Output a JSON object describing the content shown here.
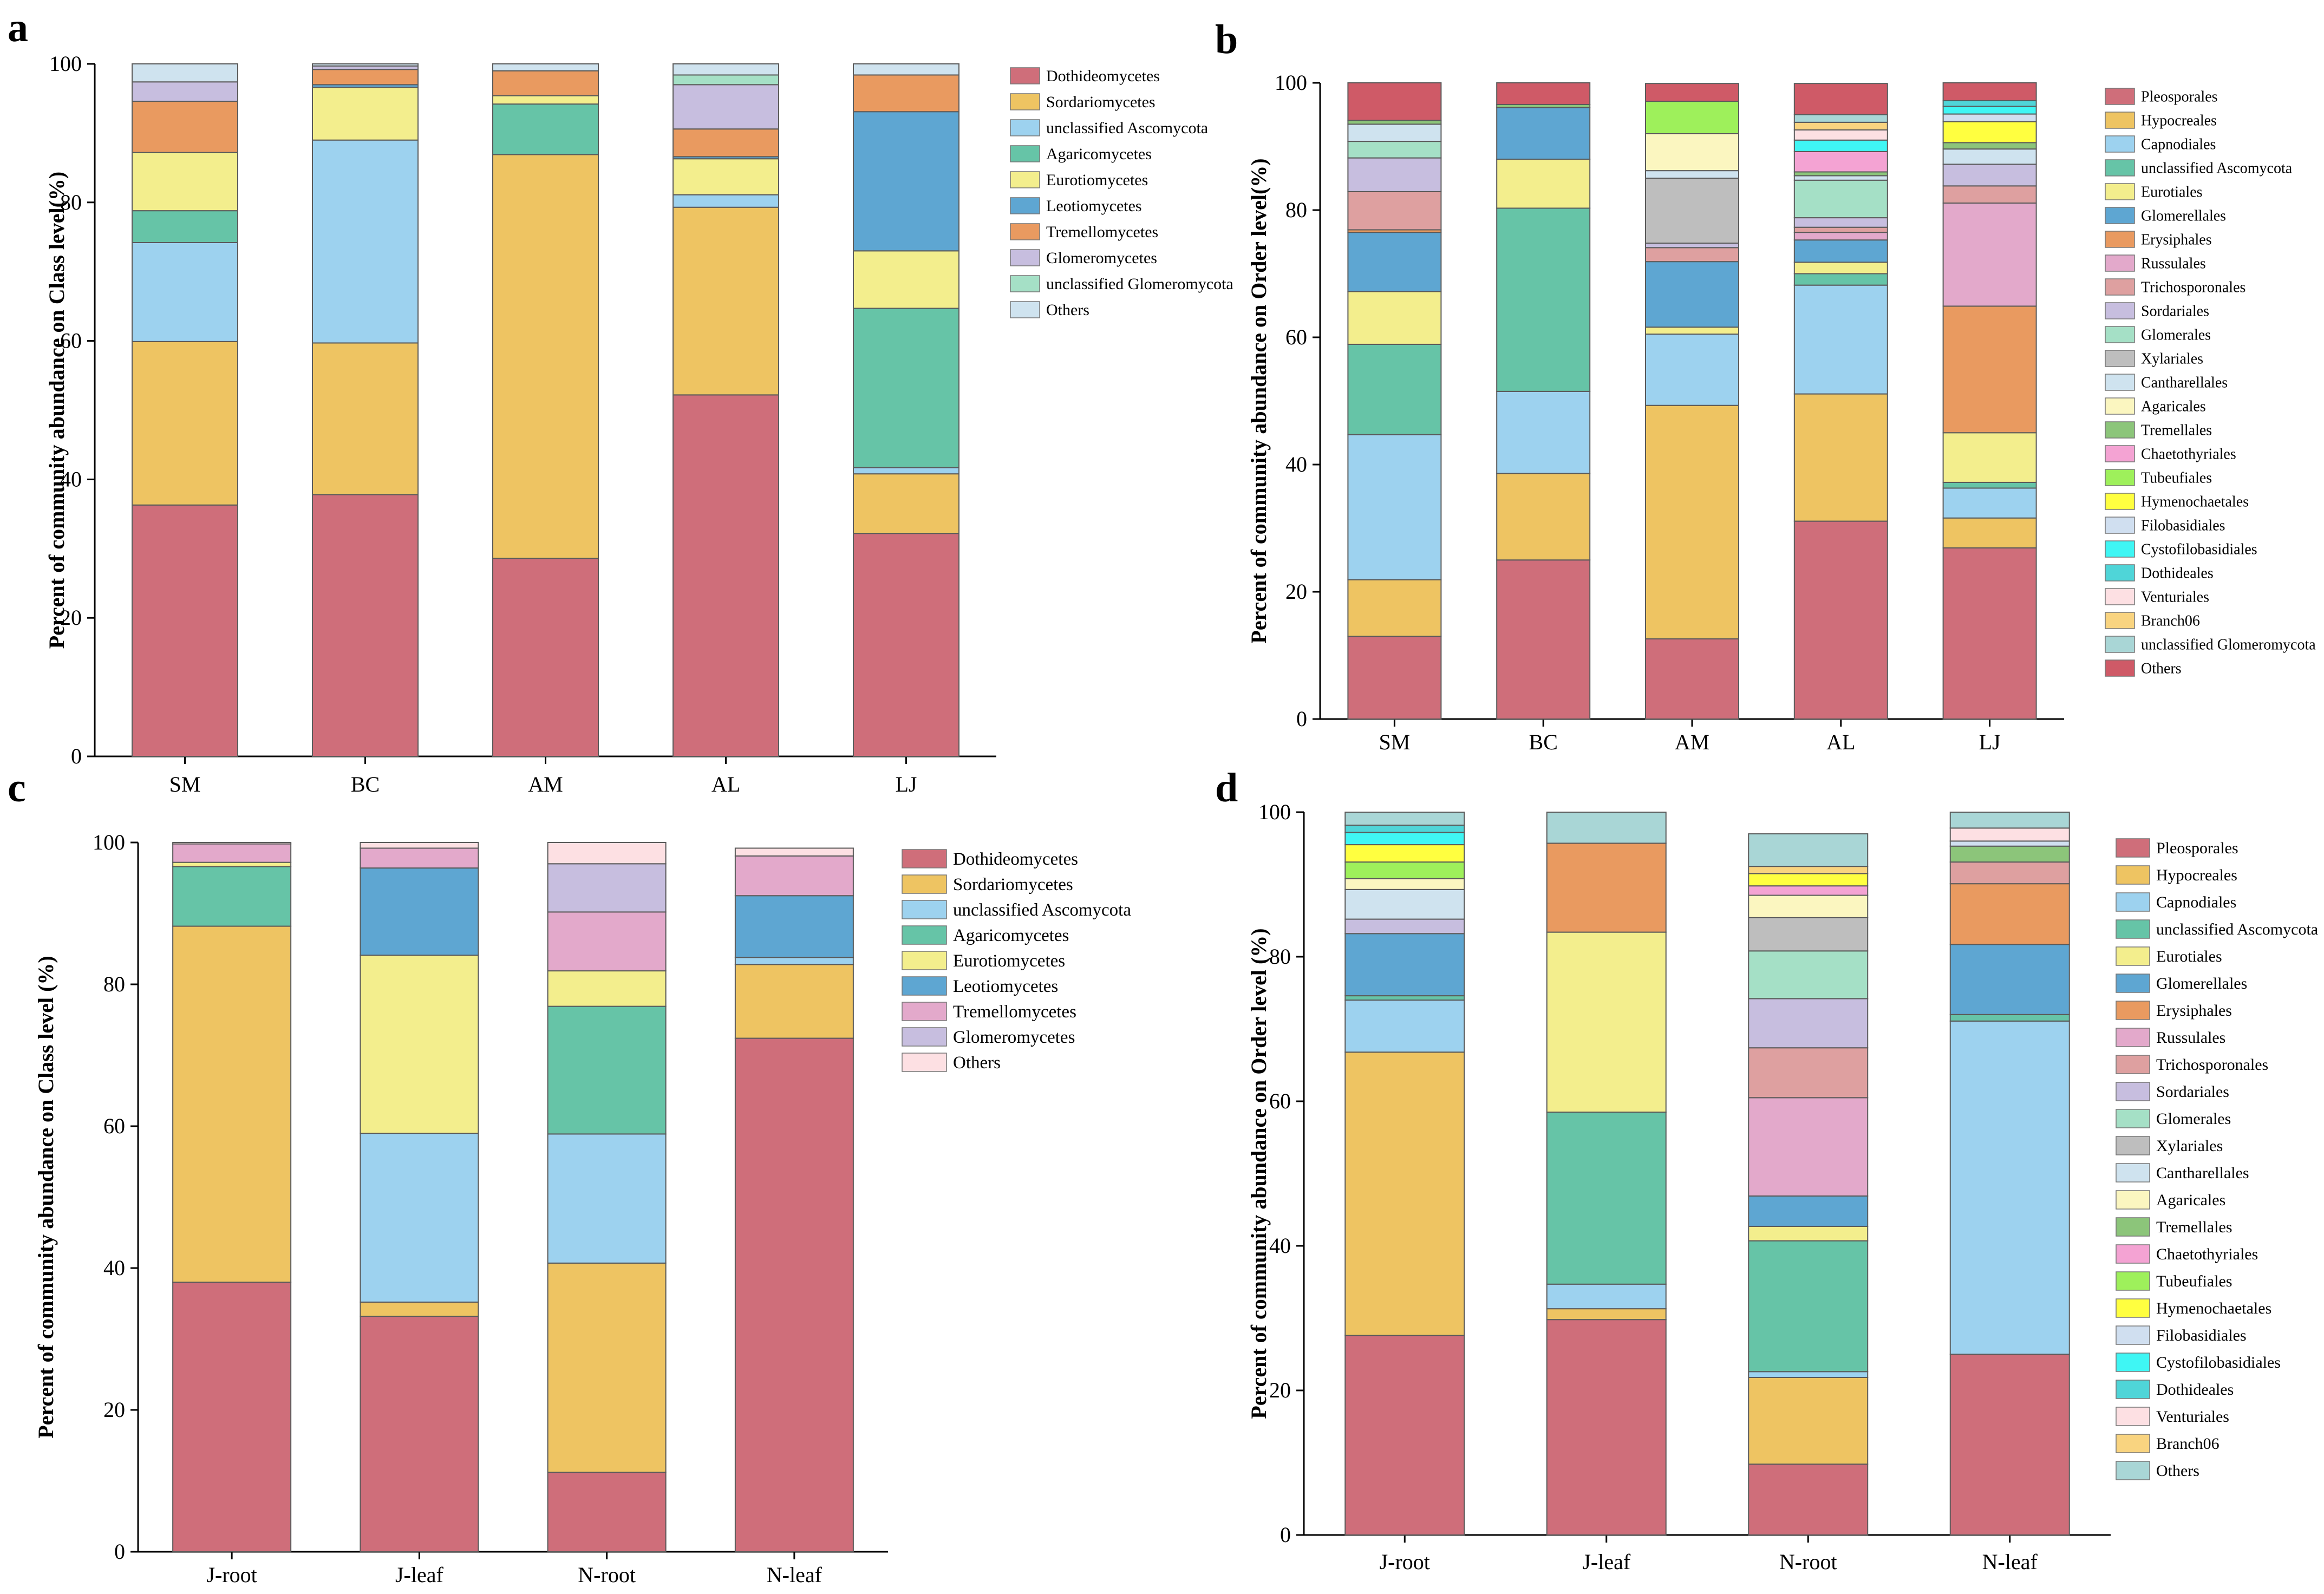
{
  "panels": [
    {
      "label": "a"
    },
    {
      "label": "b"
    },
    {
      "label": "c"
    },
    {
      "label": "d"
    }
  ],
  "chart_data": [
    {
      "type": "bar",
      "stacked": true,
      "title": "",
      "xlabel": "",
      "ylabel": "Percent of community abundance on Class level(%)",
      "ylim": [
        0,
        100
      ],
      "yticks": [
        0,
        20,
        40,
        60,
        80,
        100
      ],
      "categories": [
        "SM",
        "BC",
        "AM",
        "AL",
        "LJ"
      ],
      "series": [
        {
          "name": "Dothideomycetes",
          "color": "#cf6e7a",
          "values": [
            36.3,
            37.8,
            28.6,
            52.2,
            32.2
          ]
        },
        {
          "name": "Sordariomycetes",
          "color": "#eec462",
          "values": [
            23.6,
            21.9,
            58.3,
            27.1,
            8.6
          ]
        },
        {
          "name": "unclassified Ascomycota",
          "color": "#9dd2ef",
          "values": [
            14.3,
            29.3,
            0.0,
            1.8,
            0.9
          ]
        },
        {
          "name": "Agaricomycetes",
          "color": "#66c4a7",
          "values": [
            4.6,
            0.0,
            7.3,
            0.0,
            23.0
          ]
        },
        {
          "name": "Eurotiomycetes",
          "color": "#f3ee8d",
          "values": [
            8.4,
            7.6,
            1.2,
            5.2,
            8.3
          ]
        },
        {
          "name": "Leotiomycetes",
          "color": "#5ea6d2",
          "values": [
            0.0,
            0.4,
            0.0,
            0.3,
            20.1
          ]
        },
        {
          "name": "Tremellomycetes",
          "color": "#e99a60",
          "values": [
            7.4,
            2.2,
            3.6,
            4.0,
            5.3
          ]
        },
        {
          "name": "Glomeromycetes",
          "color": "#c7bedf",
          "values": [
            2.8,
            0.5,
            0.0,
            6.4,
            0.0
          ]
        },
        {
          "name": "unclassified Glomeromycota",
          "color": "#a5e0c6",
          "values": [
            0.0,
            0.0,
            0.0,
            1.4,
            0.0
          ]
        },
        {
          "name": "Others",
          "color": "#cfe3ef",
          "values": [
            2.6,
            0.3,
            1.0,
            1.6,
            1.6
          ]
        }
      ]
    },
    {
      "type": "bar",
      "stacked": true,
      "title": "",
      "xlabel": "",
      "ylabel": "Percent of community abundance on Order level(%)",
      "ylim": [
        0,
        100
      ],
      "yticks": [
        0,
        20,
        40,
        60,
        80,
        100
      ],
      "categories": [
        "SM",
        "BC",
        "AM",
        "AL",
        "LJ"
      ],
      "series": [
        {
          "name": "Pleosporales",
          "color": "#cf6e7a",
          "values": [
            13.0,
            25.0,
            12.6,
            31.1,
            26.9
          ]
        },
        {
          "name": "Hypocreales",
          "color": "#eec462",
          "values": [
            8.9,
            13.6,
            36.7,
            20.0,
            4.7
          ]
        },
        {
          "name": "Capnodiales",
          "color": "#9dd2ef",
          "values": [
            22.8,
            12.9,
            11.2,
            17.1,
            4.7
          ]
        },
        {
          "name": "unclassified Ascomycota",
          "color": "#66c4a7",
          "values": [
            14.2,
            28.8,
            0.0,
            1.8,
            0.9
          ]
        },
        {
          "name": "Eurotiales",
          "color": "#f3ee8d",
          "values": [
            8.3,
            7.7,
            1.1,
            1.8,
            7.8
          ]
        },
        {
          "name": "Glomerellales",
          "color": "#5ea6d2",
          "values": [
            9.3,
            8.1,
            10.3,
            3.5,
            0.0
          ]
        },
        {
          "name": "Erysiphales",
          "color": "#e99a60",
          "values": [
            0.4,
            0.0,
            0.0,
            0.0,
            19.9
          ]
        },
        {
          "name": "Russulales",
          "color": "#e3a9cb",
          "values": [
            0.0,
            0.0,
            0.0,
            1.2,
            16.2
          ]
        },
        {
          "name": "Trichosporonales",
          "color": "#dea0a0",
          "values": [
            6.0,
            0.0,
            2.2,
            0.8,
            2.7
          ]
        },
        {
          "name": "Sordariales",
          "color": "#c7bedf",
          "values": [
            5.3,
            0.0,
            0.7,
            1.5,
            3.4
          ]
        },
        {
          "name": "Glomerales",
          "color": "#a5e0c6",
          "values": [
            2.6,
            0.0,
            0.0,
            5.9,
            0.0
          ]
        },
        {
          "name": "Xylariales",
          "color": "#bebebe",
          "values": [
            0.0,
            0.0,
            10.2,
            0.0,
            0.0
          ]
        },
        {
          "name": "Cantharellales",
          "color": "#cfe3ef",
          "values": [
            2.7,
            0.0,
            1.2,
            0.7,
            2.4
          ]
        },
        {
          "name": "Agaricales",
          "color": "#fbf6c0",
          "values": [
            0.0,
            0.0,
            5.8,
            0.0,
            0.0
          ]
        },
        {
          "name": "Tremellales",
          "color": "#8cc57a",
          "values": [
            0.6,
            0.5,
            0.0,
            0.6,
            1.0
          ]
        },
        {
          "name": "Chaetothyriales",
          "color": "#f4a3d3",
          "values": [
            0.0,
            0.0,
            0.0,
            3.2,
            0.0
          ]
        },
        {
          "name": "Tubeufiales",
          "color": "#9ef05b",
          "values": [
            0.0,
            0.0,
            5.1,
            0.0,
            0.0
          ]
        },
        {
          "name": "Hymenochaetales",
          "color": "#ffff40",
          "values": [
            0.0,
            0.0,
            0.0,
            0.0,
            3.3
          ]
        },
        {
          "name": "Filobasidiales",
          "color": "#d0dff0",
          "values": [
            0.0,
            0.0,
            0.0,
            0.0,
            1.2
          ]
        },
        {
          "name": "Cystofilobasidiales",
          "color": "#3ff6f4",
          "values": [
            0.0,
            0.0,
            0.0,
            1.8,
            1.2
          ]
        },
        {
          "name": "Dothideales",
          "color": "#4fd5d8",
          "values": [
            0.0,
            0.0,
            0.0,
            0.0,
            0.9
          ]
        },
        {
          "name": "Venturiales",
          "color": "#fde0e3",
          "values": [
            0.0,
            0.0,
            0.0,
            1.6,
            0.0
          ]
        },
        {
          "name": "Branch06",
          "color": "#f9d480",
          "values": [
            0.0,
            0.0,
            0.0,
            1.2,
            0.0
          ]
        },
        {
          "name": "unclassified Glomeromycota",
          "color": "#a9d6d6",
          "values": [
            0.0,
            0.0,
            0.0,
            1.2,
            0.0
          ]
        },
        {
          "name": "Others",
          "color": "#cf5a67",
          "values": [
            5.9,
            3.4,
            2.8,
            4.9,
            2.8
          ]
        }
      ]
    },
    {
      "type": "bar",
      "stacked": true,
      "title": "",
      "xlabel": "",
      "ylabel": "Percent of community abundance on Class level (%)",
      "ylim": [
        0,
        100
      ],
      "yticks": [
        0,
        20,
        40,
        60,
        80,
        100
      ],
      "categories": [
        "J-root",
        "J-leaf",
        "N-root",
        "N-leaf"
      ],
      "series": [
        {
          "name": "Dothideomycetes",
          "color": "#cf6e7a",
          "values": [
            38.0,
            33.2,
            11.2,
            72.4
          ]
        },
        {
          "name": "Sordariomycetes",
          "color": "#eec462",
          "values": [
            50.2,
            2.0,
            29.5,
            10.4
          ]
        },
        {
          "name": "unclassified Ascomycota",
          "color": "#9dd2ef",
          "values": [
            0.0,
            23.8,
            18.2,
            1.0
          ]
        },
        {
          "name": "Agaricomycetes",
          "color": "#66c4a7",
          "values": [
            8.4,
            0.0,
            18.0,
            0.0
          ]
        },
        {
          "name": "Eurotiomycetes",
          "color": "#f3ee8d",
          "values": [
            0.6,
            25.1,
            5.0,
            0.0
          ]
        },
        {
          "name": "Leotiomycetes",
          "color": "#5ea6d2",
          "values": [
            0.0,
            12.3,
            0.0,
            8.7
          ]
        },
        {
          "name": "Tremellomycetes",
          "color": "#e3a9cb",
          "values": [
            2.6,
            2.8,
            8.3,
            5.6
          ]
        },
        {
          "name": "Glomeromycetes",
          "color": "#c7bedf",
          "values": [
            0.0,
            0.0,
            6.8,
            0.0
          ]
        },
        {
          "name": "Others",
          "color": "#fde0e3",
          "values": [
            0.2,
            0.8,
            3.0,
            1.1
          ]
        }
      ]
    },
    {
      "type": "bar",
      "stacked": true,
      "title": "",
      "xlabel": "",
      "ylabel": "Percent of community abundance on Order level (%)",
      "ylim": [
        0,
        100
      ],
      "yticks": [
        0,
        20,
        40,
        60,
        80,
        100
      ],
      "categories": [
        "J-root",
        "J-leaf",
        "N-root",
        "N-leaf"
      ],
      "series": [
        {
          "name": "Pleosporales",
          "color": "#cf6e7a",
          "values": [
            27.6,
            29.8,
            9.8,
            25.0
          ]
        },
        {
          "name": "Hypocreales",
          "color": "#eec462",
          "values": [
            39.2,
            1.5,
            12.0,
            0.0
          ]
        },
        {
          "name": "Capnodiales",
          "color": "#9dd2ef",
          "values": [
            7.2,
            3.4,
            0.8,
            46.1
          ]
        },
        {
          "name": "unclassified Ascomycota",
          "color": "#66c4a7",
          "values": [
            0.6,
            23.8,
            18.1,
            0.9
          ]
        },
        {
          "name": "Eurotiales",
          "color": "#f3ee8d",
          "values": [
            0.0,
            24.9,
            2.0,
            0.0
          ]
        },
        {
          "name": "Glomerellales",
          "color": "#5ea6d2",
          "values": [
            8.6,
            0.0,
            4.2,
            9.7
          ]
        },
        {
          "name": "Erysiphales",
          "color": "#e99a60",
          "values": [
            0.0,
            12.3,
            0.0,
            8.4
          ]
        },
        {
          "name": "Russulales",
          "color": "#e3a9cb",
          "values": [
            0.0,
            0.0,
            13.6,
            0.0
          ]
        },
        {
          "name": "Trichosporonales",
          "color": "#dea0a0",
          "values": [
            0.0,
            0.0,
            6.9,
            3.0
          ]
        },
        {
          "name": "Sordariales",
          "color": "#c7bedf",
          "values": [
            2.0,
            0.0,
            6.8,
            0.0
          ]
        },
        {
          "name": "Glomerales",
          "color": "#a5e0c6",
          "values": [
            0.0,
            0.0,
            6.6,
            0.0
          ]
        },
        {
          "name": "Xylariales",
          "color": "#bebebe",
          "values": [
            0.0,
            0.0,
            4.6,
            0.0
          ]
        },
        {
          "name": "Cantharellales",
          "color": "#cfe3ef",
          "values": [
            4.1,
            0.0,
            0.0,
            0.0
          ]
        },
        {
          "name": "Agaricales",
          "color": "#fbf6c0",
          "values": [
            1.5,
            0.0,
            3.1,
            0.0
          ]
        },
        {
          "name": "Tremellales",
          "color": "#8cc57a",
          "values": [
            0.0,
            0.0,
            0.0,
            2.2
          ]
        },
        {
          "name": "Chaetothyriales",
          "color": "#f4a3d3",
          "values": [
            0.0,
            0.0,
            1.3,
            0.0
          ]
        },
        {
          "name": "Tubeufiales",
          "color": "#9ef05b",
          "values": [
            2.3,
            0.0,
            0.0,
            0.0
          ]
        },
        {
          "name": "Hymenochaetales",
          "color": "#ffff40",
          "values": [
            2.4,
            0.0,
            1.7,
            0.0
          ]
        },
        {
          "name": "Filobasidiales",
          "color": "#d0dff0",
          "values": [
            0.0,
            0.0,
            0.0,
            0.7
          ]
        },
        {
          "name": "Cystofilobasidiales",
          "color": "#3ff6f4",
          "values": [
            1.7,
            0.0,
            0.0,
            0.0
          ]
        },
        {
          "name": "Dothideales",
          "color": "#4fd5d8",
          "values": [
            1.0,
            0.0,
            0.0,
            0.0
          ]
        },
        {
          "name": "Venturiales",
          "color": "#fde0e3",
          "values": [
            0.0,
            0.0,
            0.0,
            1.8
          ]
        },
        {
          "name": "Branch06",
          "color": "#f9d480",
          "values": [
            0.0,
            0.0,
            1.0,
            0.0
          ]
        },
        {
          "name": "Others",
          "color": "#a9d6d6",
          "values": [
            1.8,
            4.3,
            4.5,
            2.2
          ]
        }
      ]
    }
  ]
}
